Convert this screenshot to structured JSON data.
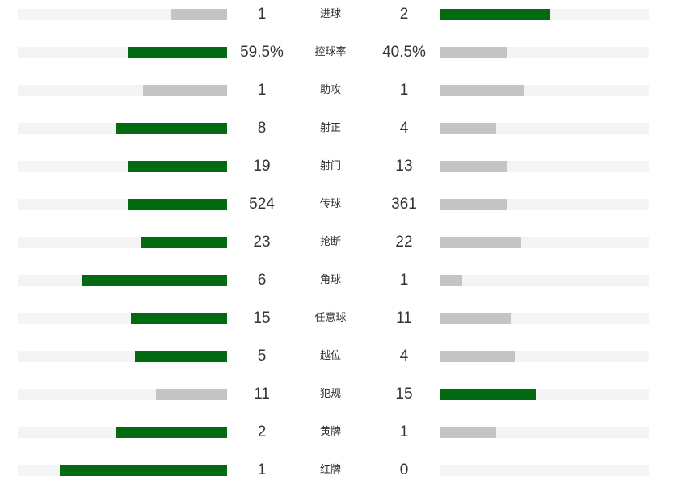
{
  "colors": {
    "leading": "#026b12",
    "trailing": "#c4c4c4",
    "track": "#f4f4f4"
  },
  "stats": [
    {
      "label": "进球",
      "home": "1",
      "away": "2",
      "home_fill": 0.27,
      "away_fill": 0.53,
      "home_leads": false,
      "away_leads": true
    },
    {
      "label": "控球率",
      "home": "59.5%",
      "away": "40.5%",
      "home_fill": 0.47,
      "away_fill": 0.32,
      "home_leads": true,
      "away_leads": false
    },
    {
      "label": "助攻",
      "home": "1",
      "away": "1",
      "home_fill": 0.4,
      "away_fill": 0.4,
      "home_leads": false,
      "away_leads": false
    },
    {
      "label": "射正",
      "home": "8",
      "away": "4",
      "home_fill": 0.53,
      "away_fill": 0.27,
      "home_leads": true,
      "away_leads": false
    },
    {
      "label": "射门",
      "home": "19",
      "away": "13",
      "home_fill": 0.47,
      "away_fill": 0.32,
      "home_leads": true,
      "away_leads": false
    },
    {
      "label": "传球",
      "home": "524",
      "away": "361",
      "home_fill": 0.47,
      "away_fill": 0.32,
      "home_leads": true,
      "away_leads": false
    },
    {
      "label": "抢断",
      "home": "23",
      "away": "22",
      "home_fill": 0.41,
      "away_fill": 0.39,
      "home_leads": true,
      "away_leads": false
    },
    {
      "label": "角球",
      "home": "6",
      "away": "1",
      "home_fill": 0.69,
      "away_fill": 0.11,
      "home_leads": true,
      "away_leads": false
    },
    {
      "label": "任意球",
      "home": "15",
      "away": "11",
      "home_fill": 0.46,
      "away_fill": 0.34,
      "home_leads": true,
      "away_leads": false
    },
    {
      "label": "越位",
      "home": "5",
      "away": "4",
      "home_fill": 0.44,
      "away_fill": 0.36,
      "home_leads": true,
      "away_leads": false
    },
    {
      "label": "犯规",
      "home": "11",
      "away": "15",
      "home_fill": 0.34,
      "away_fill": 0.46,
      "home_leads": false,
      "away_leads": true
    },
    {
      "label": "黄牌",
      "home": "2",
      "away": "1",
      "home_fill": 0.53,
      "away_fill": 0.27,
      "home_leads": true,
      "away_leads": false
    },
    {
      "label": "红牌",
      "home": "1",
      "away": "0",
      "home_fill": 0.8,
      "away_fill": 0,
      "home_leads": true,
      "away_leads": false
    }
  ]
}
